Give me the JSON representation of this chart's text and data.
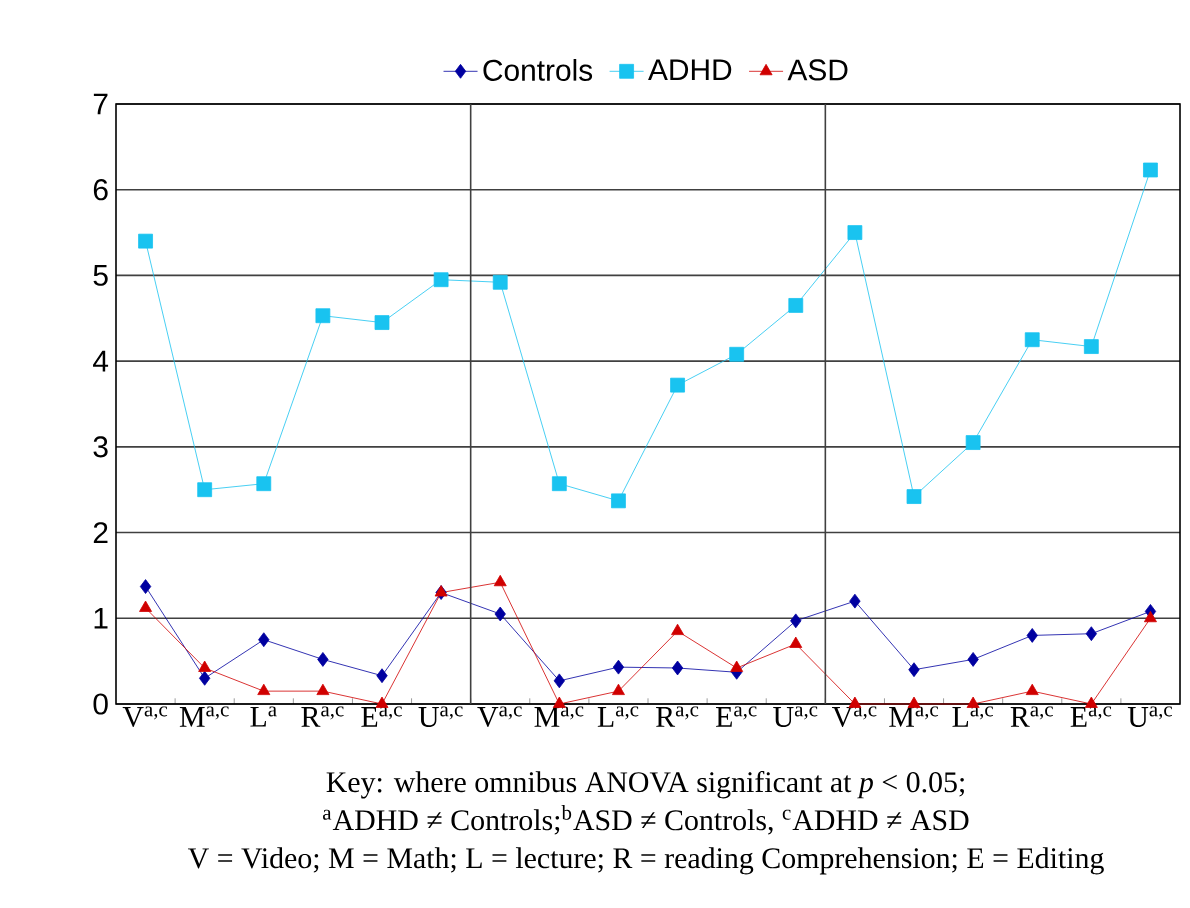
{
  "chart_data": {
    "type": "line",
    "categories": [
      "V$^{a,c}$",
      "M$^{a,c}$",
      "L$^{a}$",
      "R$^{a,c}$",
      "E$^{a,c}$",
      "U$^{a,c}$",
      "V$^{a,c}$",
      "M$^{a,c}$",
      "L$^{a,c}$",
      "R$^{a,c}$",
      "E$^{a,c}$",
      "U$^{a,c}$",
      "V$^{a,c}$",
      "M$^{a,c}$",
      "L$^{a,c}$",
      "R$^{a,c}$",
      "E$^{a,c}$",
      "U$^{a,c}$"
    ],
    "series": [
      {
        "name": "Controls",
        "color": "#0000a0",
        "marker": "diamond",
        "values": [
          1.37,
          0.3,
          0.75,
          0.52,
          0.33,
          1.3,
          1.05,
          0.27,
          0.43,
          0.42,
          0.37,
          0.97,
          1.2,
          0.4,
          0.52,
          0.8,
          0.82,
          1.08
        ]
      },
      {
        "name": "ADHD",
        "color": "#19c3f0",
        "marker": "square",
        "values": [
          5.4,
          2.5,
          2.57,
          4.53,
          4.45,
          4.95,
          4.92,
          2.57,
          2.37,
          3.72,
          4.08,
          4.65,
          5.5,
          2.42,
          3.05,
          4.25,
          4.17,
          6.23
        ]
      },
      {
        "name": "ASD",
        "color": "#d00000",
        "marker": "triangle",
        "values": [
          1.12,
          0.42,
          0.15,
          0.15,
          0.0,
          1.3,
          1.42,
          0.0,
          0.15,
          0.85,
          0.42,
          0.7,
          0.0,
          0.0,
          0.0,
          0.15,
          0.0,
          1.0
        ]
      }
    ],
    "ylim": [
      0,
      7
    ],
    "yticks": [
      0,
      1,
      2,
      3,
      4,
      5,
      6,
      7
    ],
    "grid": "y",
    "legend": "top",
    "line_style": "solid",
    "annotations": [
      "Key: where omnibus ANOVA significant at *p* < 0.05;",
      "$^{a}$ADHD ≠ Controls;$^{b}$ASD ≠ Controls, $^{c}$ADHD ≠ ASD",
      "V = Video; M = Math; L = lecture; R = reading Comprehension; E = Editing"
    ]
  }
}
